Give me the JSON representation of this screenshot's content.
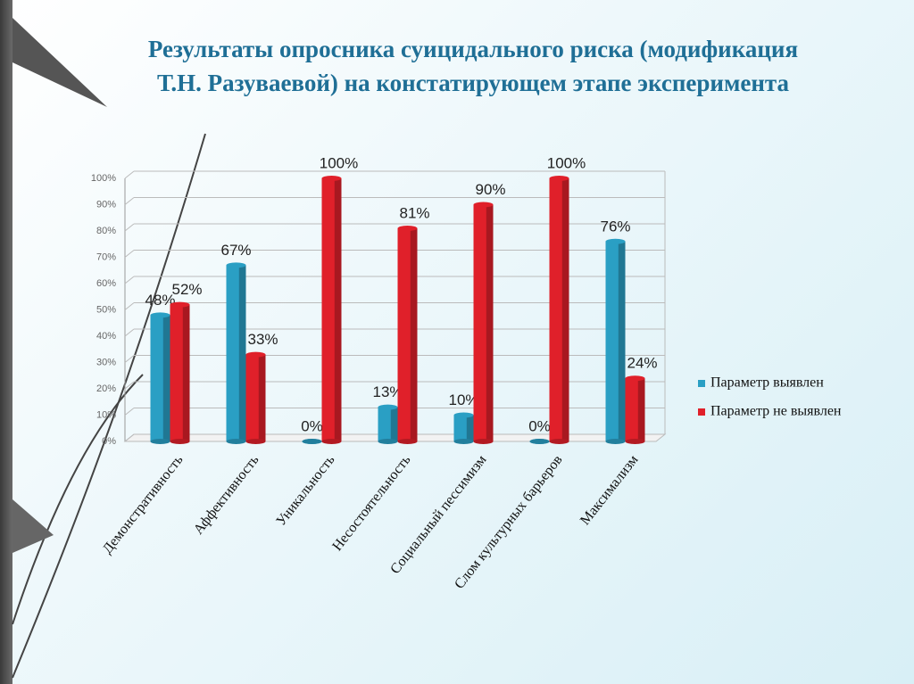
{
  "chart_data": {
    "type": "bar",
    "title": "Результаты опросника суицидального риска (модификация Т.Н. Разуваевой) на констатирующем этапе эксперимента",
    "categories": [
      "Демонстративность",
      "Аффективность",
      "Уникальность",
      "Несостоятельность",
      "Социальный пессимизм",
      "Слом культурных барьеров",
      "Максимализм"
    ],
    "series": [
      {
        "name": "Параметр выявлен",
        "color": "#2a9fc4",
        "values": [
          48,
          67,
          0,
          13,
          10,
          0,
          76
        ],
        "value_labels": [
          "48%",
          "67%",
          "0%",
          "13%",
          "10%",
          "0%",
          "76%"
        ]
      },
      {
        "name": "Параметр не выявлен",
        "color": "#e0202a",
        "values": [
          52,
          33,
          100,
          81,
          90,
          100,
          24
        ],
        "value_labels": [
          "52%",
          "33%",
          "100%",
          "81%",
          "90%",
          "100%",
          "24%"
        ]
      }
    ],
    "ylim": [
      0,
      100
    ],
    "yticks": [
      {
        "value": 0,
        "label": "0%"
      },
      {
        "value": 10,
        "label": "10%"
      },
      {
        "value": 20,
        "label": "20%"
      },
      {
        "value": 30,
        "label": "30%"
      },
      {
        "value": 40,
        "label": "40%"
      },
      {
        "value": 50,
        "label": "50%"
      },
      {
        "value": 60,
        "label": "60%"
      },
      {
        "value": 70,
        "label": "70%"
      },
      {
        "value": 80,
        "label": "80%"
      },
      {
        "value": 90,
        "label": "90%"
      },
      {
        "value": 100,
        "label": "100%"
      }
    ],
    "grid": true,
    "legend": "right"
  }
}
